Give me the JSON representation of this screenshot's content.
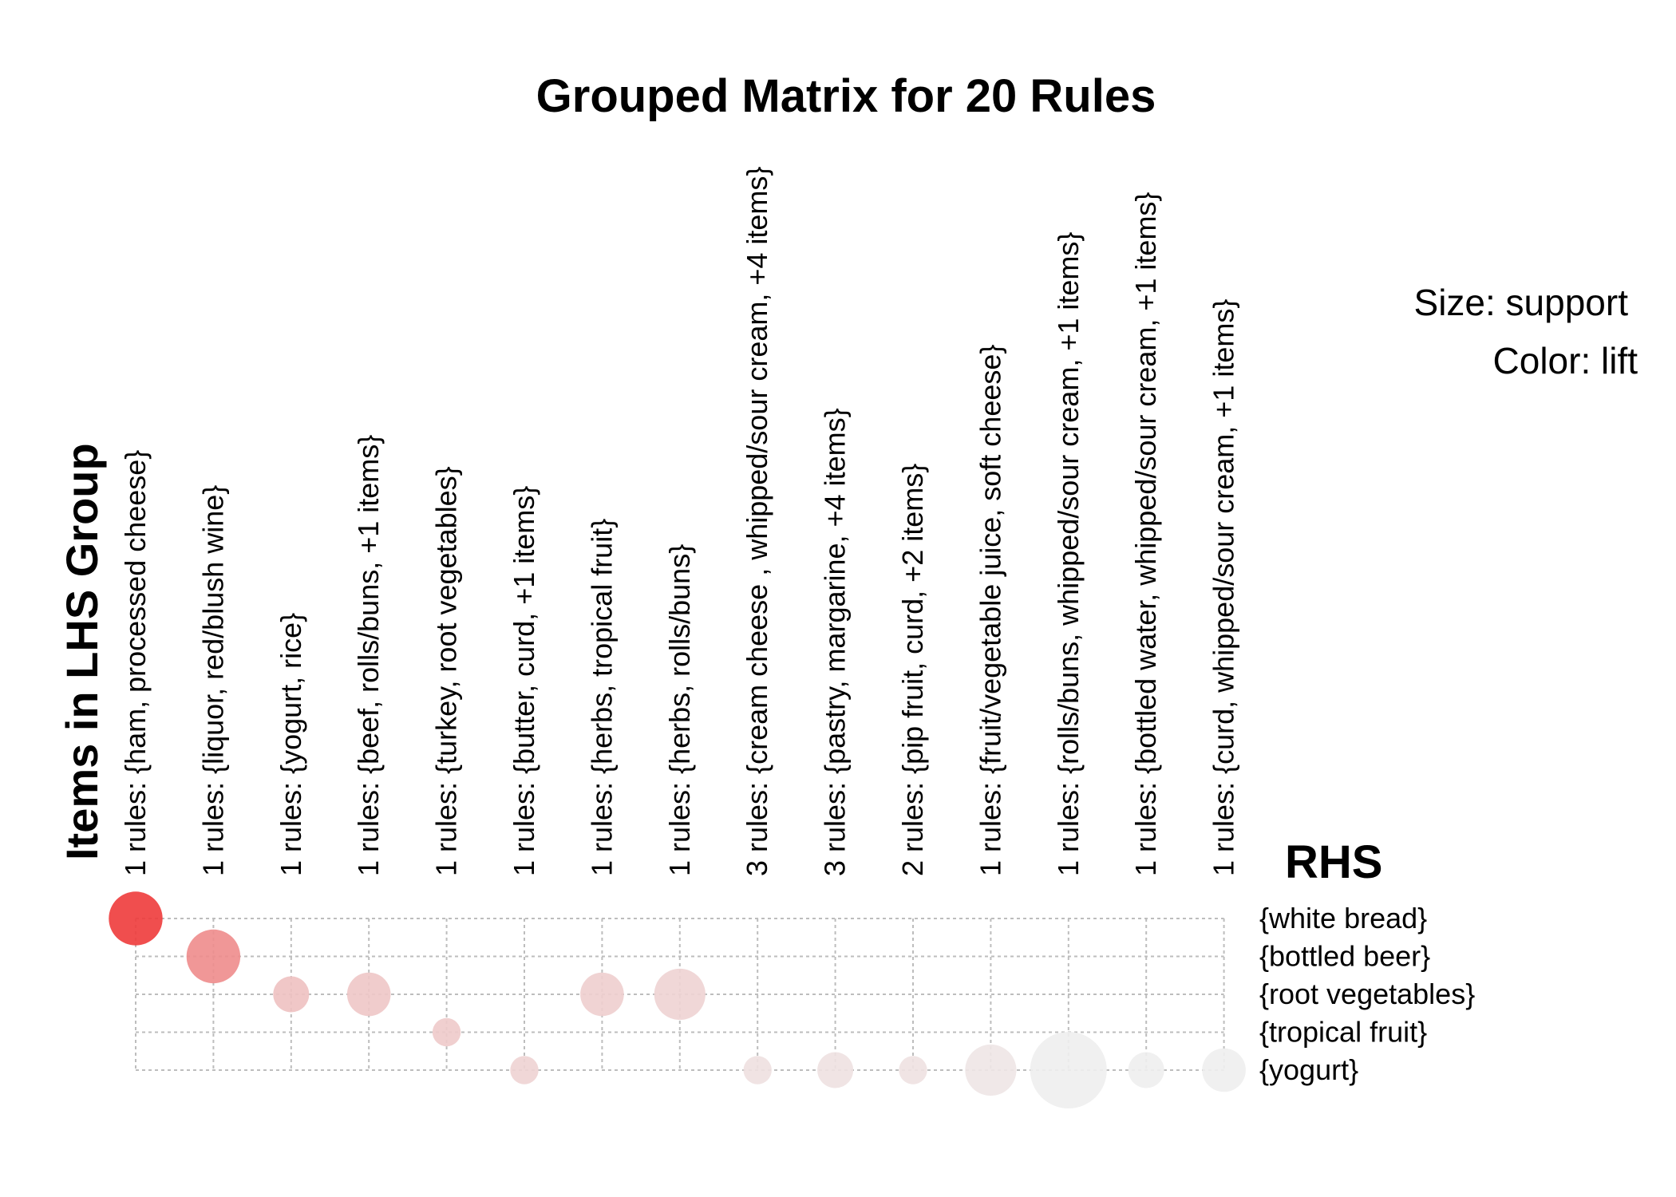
{
  "chart_data": {
    "type": "scatter",
    "title": "Grouped Matrix for 20 Rules",
    "xlabel": "Items in LHS Group",
    "ylabel": "RHS",
    "legend": {
      "size": "Size: support",
      "color": "Color: lift"
    },
    "lhs_groups": [
      "1 rules: {ham, processed cheese}",
      "1 rules: {liquor, red/blush wine}",
      "1 rules: {yogurt, rice}",
      "1 rules: {beef, rolls/buns, +1 items}",
      "1 rules: {turkey, root vegetables}",
      "1 rules: {butter, curd, +1 items}",
      "1 rules: {herbs, tropical fruit}",
      "1 rules: {herbs, rolls/buns}",
      "3 rules: {cream cheese , whipped/sour cream, +4 items}",
      "3 rules: {pastry, margarine, +4 items}",
      "2 rules: {pip fruit, curd, +2 items}",
      "1 rules: {fruit/vegetable juice, soft cheese}",
      "1 rules: {rolls/buns, whipped/sour cream, +1 items}",
      "1 rules: {bottled water, whipped/sour cream, +1 items}",
      "1 rules: {curd, whipped/sour cream, +1 items}"
    ],
    "rhs_items": [
      "{white bread}",
      "{bottled beer}",
      "{root vegetables}",
      "{tropical fruit}",
      "{yogurt}"
    ],
    "points": [
      {
        "col": 0,
        "row": 0,
        "support": 0.4,
        "lift": 1.0
      },
      {
        "col": 1,
        "row": 1,
        "support": 0.4,
        "lift": 0.55
      },
      {
        "col": 2,
        "row": 2,
        "support": 0.12,
        "lift": 0.25
      },
      {
        "col": 3,
        "row": 2,
        "support": 0.22,
        "lift": 0.22
      },
      {
        "col": 4,
        "row": 3,
        "support": 0.05,
        "lift": 0.2
      },
      {
        "col": 5,
        "row": 4,
        "support": 0.05,
        "lift": 0.15
      },
      {
        "col": 6,
        "row": 2,
        "support": 0.22,
        "lift": 0.18
      },
      {
        "col": 7,
        "row": 2,
        "support": 0.35,
        "lift": 0.15
      },
      {
        "col": 8,
        "row": 4,
        "support": 0.05,
        "lift": 0.08
      },
      {
        "col": 9,
        "row": 4,
        "support": 0.12,
        "lift": 0.07
      },
      {
        "col": 10,
        "row": 4,
        "support": 0.05,
        "lift": 0.07
      },
      {
        "col": 11,
        "row": 4,
        "support": 0.35,
        "lift": 0.05
      },
      {
        "col": 12,
        "row": 4,
        "support": 1.0,
        "lift": 0.0
      },
      {
        "col": 13,
        "row": 4,
        "support": 0.12,
        "lift": 0.0
      },
      {
        "col": 14,
        "row": 4,
        "support": 0.22,
        "lift": 0.0
      }
    ],
    "colors": {
      "high": "#ee3b3b",
      "low": "#eeeeee"
    },
    "grid": true,
    "legend_placement": "top-right"
  }
}
